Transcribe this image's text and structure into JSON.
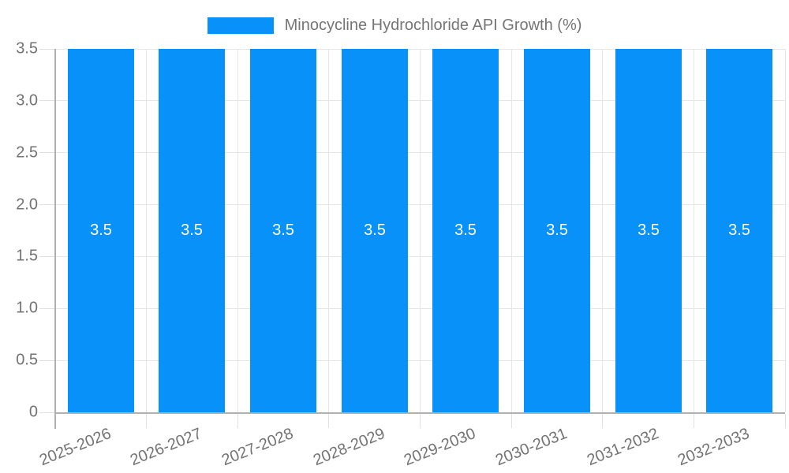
{
  "legend": {
    "label": "Minocycline Hydrochloride API Growth (%)"
  },
  "chart_data": {
    "type": "bar",
    "title": "Minocycline Hydrochloride API Growth (%)",
    "categories": [
      "2025-2026",
      "2026-2027",
      "2027-2028",
      "2028-2029",
      "2029-2030",
      "2030-2031",
      "2031-2032",
      "2032-2033"
    ],
    "values": [
      3.5,
      3.5,
      3.5,
      3.5,
      3.5,
      3.5,
      3.5,
      3.5
    ],
    "bar_value_labels": [
      "3.5",
      "3.5",
      "3.5",
      "3.5",
      "3.5",
      "3.5",
      "3.5",
      "3.5"
    ],
    "xlabel": "",
    "ylabel": "",
    "ylim": [
      0,
      3.5
    ],
    "ytick_values": [
      0,
      0.5,
      1.0,
      1.5,
      2.0,
      2.5,
      3.0,
      3.5
    ],
    "ytick_labels": [
      "0",
      "0.5",
      "1.0",
      "1.5",
      "2.0",
      "2.5",
      "3.0",
      "3.5"
    ],
    "grid": true,
    "legend_position": "top-center",
    "colors": {
      "bar": "#0891F8",
      "grid": "#e6e6e6",
      "axis": "#b0b0b0",
      "tick": "#e0e0e0",
      "label_text": "#737373",
      "legend_text": "#757575",
      "bar_label_text": "#ffffff"
    }
  }
}
